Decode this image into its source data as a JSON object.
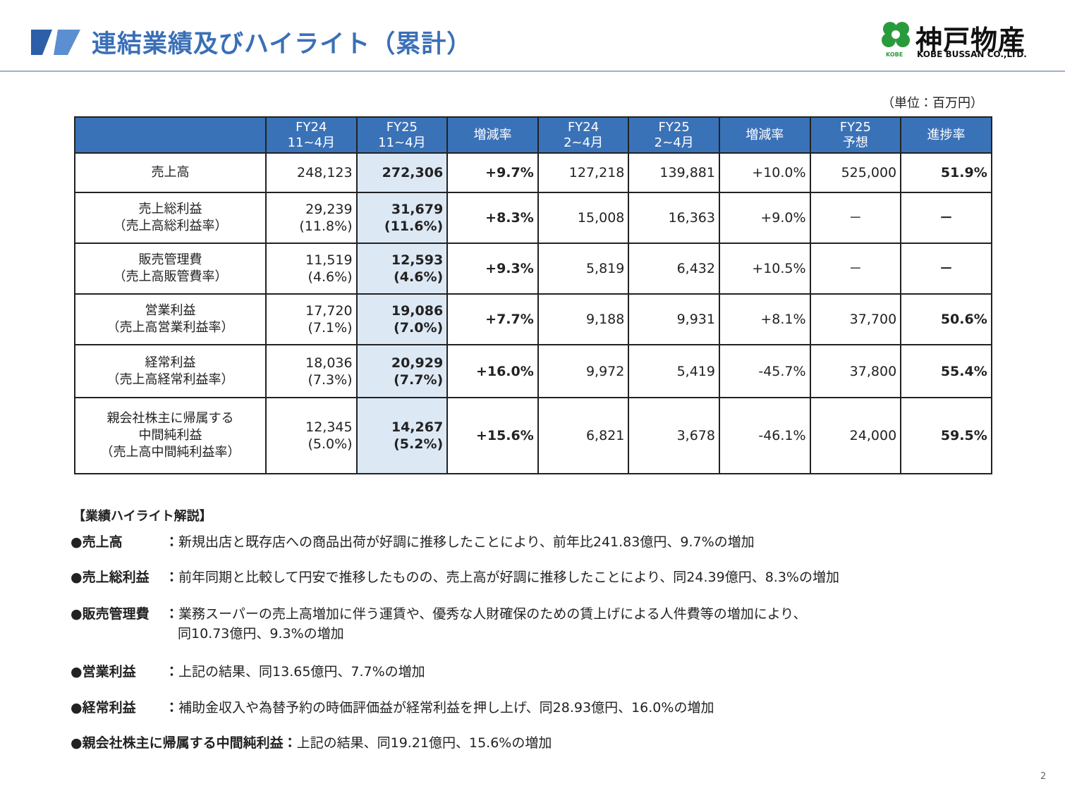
{
  "header": {
    "title": "連結業績及びハイライト（累計）",
    "logo_name": "神戸物産",
    "logo_sub": "KOBE BUSSAN CO.,LTD.",
    "logo_mark": "KOBE"
  },
  "unit": "（単位：百万円）",
  "table": {
    "columns": [
      [
        "FY24",
        "11~4月"
      ],
      [
        "FY25",
        "11~4月"
      ],
      [
        "増減率"
      ],
      [
        "FY24",
        "2~4月"
      ],
      [
        "FY25",
        "2~4月"
      ],
      [
        "増減率"
      ],
      [
        "FY25",
        "予想"
      ],
      [
        "進捗率"
      ]
    ],
    "rows": [
      {
        "label": [
          "売上高"
        ],
        "cells": [
          [
            "248,123"
          ],
          [
            "272,306"
          ],
          [
            "+9.7%"
          ],
          [
            "127,218"
          ],
          [
            "139,881"
          ],
          [
            "+10.0%"
          ],
          [
            "525,000"
          ],
          [
            "51.9%"
          ]
        ]
      },
      {
        "label": [
          "売上総利益",
          "（売上高総利益率）"
        ],
        "cells": [
          [
            "29,239",
            "(11.8%)"
          ],
          [
            "31,679",
            "(11.6%)"
          ],
          [
            "+8.3%"
          ],
          [
            "15,008"
          ],
          [
            "16,363"
          ],
          [
            "+9.0%"
          ],
          [
            "－"
          ],
          [
            "－"
          ]
        ]
      },
      {
        "label": [
          "販売管理費",
          "（売上高販管費率）"
        ],
        "cells": [
          [
            "11,519",
            "(4.6%)"
          ],
          [
            "12,593",
            "(4.6%)"
          ],
          [
            "+9.3%"
          ],
          [
            "5,819"
          ],
          [
            "6,432"
          ],
          [
            "+10.5%"
          ],
          [
            "－"
          ],
          [
            "－"
          ]
        ]
      },
      {
        "label": [
          "営業利益",
          "（売上高営業利益率）"
        ],
        "cells": [
          [
            "17,720",
            "(7.1%)"
          ],
          [
            "19,086",
            "(7.0%)"
          ],
          [
            "+7.7%"
          ],
          [
            "9,188"
          ],
          [
            "9,931"
          ],
          [
            "+8.1%"
          ],
          [
            "37,700"
          ],
          [
            "50.6%"
          ]
        ]
      },
      {
        "label": [
          "経常利益",
          "（売上高経常利益率）"
        ],
        "cells": [
          [
            "18,036",
            "(7.3%)"
          ],
          [
            "20,929",
            "(7.7%)"
          ],
          [
            "+16.0%"
          ],
          [
            "9,972"
          ],
          [
            "5,419"
          ],
          [
            "-45.7%"
          ],
          [
            "37,800"
          ],
          [
            "55.4%"
          ]
        ]
      },
      {
        "label": [
          "親会社株主に帰属する",
          "中間純利益",
          "（売上高中間純利益率）"
        ],
        "cells": [
          [
            "12,345",
            "(5.0%)"
          ],
          [
            "14,267",
            "(5.2%)"
          ],
          [
            "+15.6%"
          ],
          [
            "6,821"
          ],
          [
            "3,678"
          ],
          [
            "-46.1%"
          ],
          [
            "24,000"
          ],
          [
            "59.5%"
          ]
        ]
      }
    ]
  },
  "highlights": {
    "title": "【業績ハイライト解説】",
    "items": [
      {
        "label": "●売上高",
        "colon": "：",
        "text": [
          "新規出店と既存店への商品出荷が好調に推移したことにより、前年比241.83億円、9.7%の増加"
        ]
      },
      {
        "label": "●売上総利益",
        "colon": "：",
        "text": [
          "前年同期と比較して円安で推移したものの、売上高が好調に推移したことにより、同24.39億円、8.3%の増加"
        ]
      },
      {
        "label": "●販売管理費",
        "colon": "：",
        "text": [
          "業務スーパーの売上高増加に伴う運賃や、優秀な人財確保のための賃上げによる人件費等の増加により、",
          "同10.73億円、9.3%の増加"
        ]
      },
      {
        "label": "●営業利益",
        "colon": "：",
        "text": [
          "上記の結果、同13.65億円、7.7%の増加"
        ]
      },
      {
        "label": "●経常利益",
        "colon": "：",
        "text": [
          "補助金収入や為替予約の時価評価益が経常利益を押し上げ、同28.93億円、16.0%の増加"
        ]
      },
      {
        "label": "●親会社株主に帰属する中間純利益",
        "colon": "：",
        "text": [
          "上記の結果、同19.21億円、15.6%の増加"
        ]
      }
    ]
  },
  "page_number": "2"
}
